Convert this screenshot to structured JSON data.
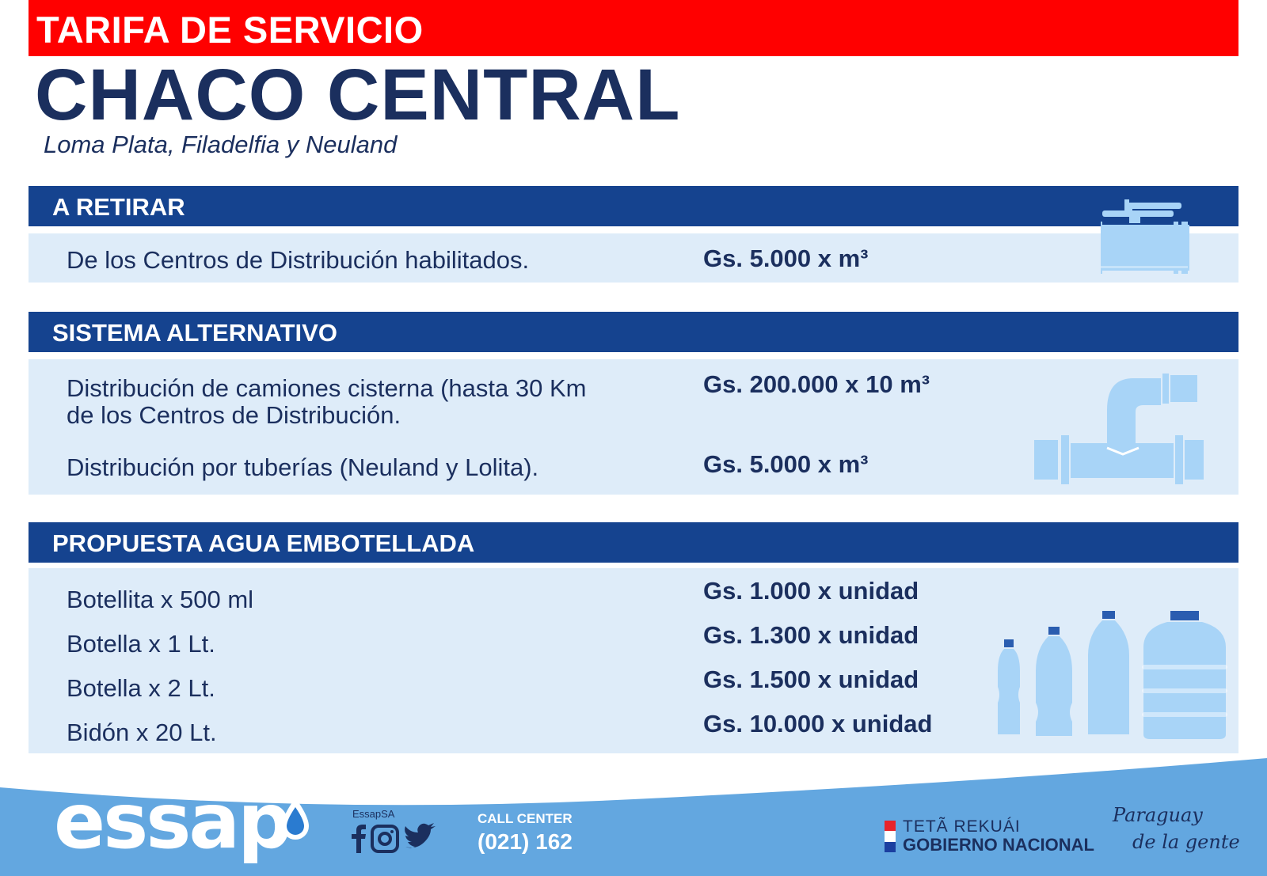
{
  "header": {
    "banner": "TARIFA DE SERVICIO",
    "title": "CHACO CENTRAL",
    "subtitle": "Loma Plata, Filadelfia y Neuland"
  },
  "sections": [
    {
      "title": "A RETIRAR",
      "icon": "faucet-valve-icon",
      "rows": [
        {
          "label": "De los Centros de Distribución habilitados.",
          "price": "Gs. 5.000 x m³"
        }
      ]
    },
    {
      "title": "SISTEMA ALTERNATIVO",
      "icon": "pipe-fitting-icon",
      "rows": [
        {
          "label_line1": "Distribución de camiones cisterna (hasta 30 Km",
          "label_line2": "de los Centros de Distribución.",
          "price": "Gs. 200.000 x 10 m³"
        },
        {
          "label": "Distribución por tuberías (Neuland y Lolita).",
          "price": "Gs. 5.000 x m³"
        }
      ]
    },
    {
      "title": "PROPUESTA AGUA EMBOTELLADA",
      "icon": "water-bottles-icon",
      "rows": [
        {
          "label": "Botellita x 500 ml",
          "price": "Gs. 1.000 x unidad"
        },
        {
          "label": "Botella x 1 Lt.",
          "price": "Gs. 1.300 x unidad"
        },
        {
          "label": "Botella x 2 Lt.",
          "price": "Gs. 1.500 x unidad"
        },
        {
          "label": "Bidón x 20 Lt.",
          "price": "Gs. 10.000 x unidad"
        }
      ]
    }
  ],
  "footer": {
    "logo": "essap",
    "social_handle": "EssapSA",
    "social_icons": [
      "facebook-icon",
      "instagram-icon",
      "twitter-icon"
    ],
    "call_center_label": "CALL CENTER",
    "call_center_number": "(021) 162",
    "gov_line1": "TETÃ REKUÁI",
    "gov_line2": "GOBIERNO NACIONAL",
    "slogan_line1": "Paraguay",
    "slogan_line2": "de la gente"
  },
  "colors": {
    "banner_red": "#ff0000",
    "navy_text": "#1b2f5e",
    "section_blue": "#15438f",
    "row_bg": "#deecf9",
    "footer_blue": "#63a7e0",
    "icon_light_blue": "#a8d4f7"
  }
}
